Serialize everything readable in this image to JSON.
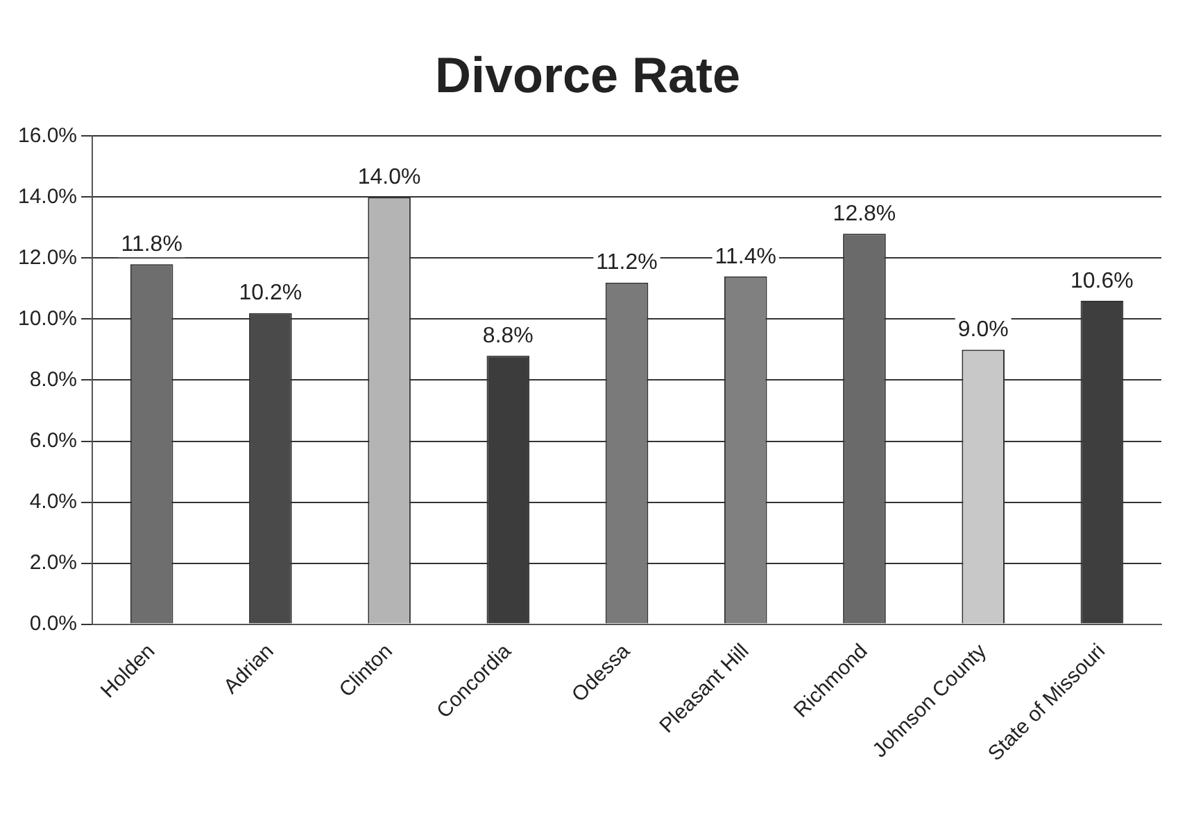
{
  "chart_data": {
    "type": "bar",
    "title": "Divorce Rate",
    "categories": [
      "Holden",
      "Adrian",
      "Clinton",
      "Concordia",
      "Odessa",
      "Pleasant Hill",
      "Richmond",
      "Johnson County",
      "State of Missouri"
    ],
    "values": [
      11.8,
      10.2,
      14.0,
      8.8,
      11.2,
      11.4,
      12.8,
      9.0,
      10.6
    ],
    "colors": [
      "#6e6e6e",
      "#4a4a4a",
      "#b4b4b4",
      "#3c3c3c",
      "#7a7a7a",
      "#808080",
      "#6a6a6a",
      "#c8c8c8",
      "#3e3e3e"
    ],
    "value_labels": [
      "11.8%",
      "10.2%",
      "14.0%",
      "8.8%",
      "11.2%",
      "11.4%",
      "12.8%",
      "9.0%",
      "10.6%"
    ],
    "ylim": [
      0,
      16
    ],
    "yticks": [
      {
        "value": 0,
        "label": "0.0%"
      },
      {
        "value": 2,
        "label": "2.0%"
      },
      {
        "value": 4,
        "label": "4.0%"
      },
      {
        "value": 6,
        "label": "6.0%"
      },
      {
        "value": 8,
        "label": "8.0%"
      },
      {
        "value": 10,
        "label": "10.0%"
      },
      {
        "value": 12,
        "label": "12.0%"
      },
      {
        "value": 14,
        "label": "14.0%"
      },
      {
        "value": 16,
        "label": "16.0%"
      }
    ],
    "grid": "y",
    "legend": false
  }
}
